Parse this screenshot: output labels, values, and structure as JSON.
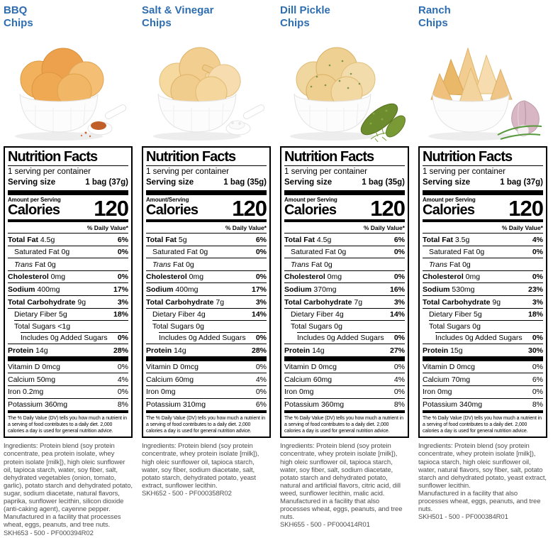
{
  "shared": {
    "title_color": "#2e6eb0",
    "nutrition_facts_title": "Nutrition Facts",
    "servings_per_container": "1 serving per container",
    "serving_size_label": "Serving size",
    "calories_label": "Calories",
    "daily_value_header": "% Daily Value*",
    "footnote": "The % Daily Value (DV) tells you how much a nutrient in a serving of food contributes to a daily diet. 2,000 calories a day is used for general nutrition advice."
  },
  "products": [
    {
      "title": "BBQ\nChips",
      "photo_alt": "bowl of BBQ chips with spice spoon",
      "label": {
        "amount_label": "Amount per Serving",
        "serving_size_value": "1 bag (37g)",
        "calories_value": "120",
        "rows": [
          {
            "name": "Total Fat",
            "amount": "4.5g",
            "pct": "6%",
            "bold": true
          },
          {
            "name": "Saturated Fat",
            "amount": "0g",
            "pct": "0%",
            "indent": 1
          },
          {
            "name": "Trans Fat",
            "amount": "0g",
            "pct": "",
            "indent": 1,
            "italicFirst": true
          },
          {
            "name": "Cholesterol",
            "amount": "0mg",
            "pct": "0%",
            "bold": true
          },
          {
            "name": "Sodium",
            "amount": "400mg",
            "pct": "17%",
            "bold": true
          },
          {
            "name": "Total Carbohydrate",
            "amount": "9g",
            "pct": "3%",
            "bold": true
          },
          {
            "name": "Dietary Fiber",
            "amount": "5g",
            "pct": "18%",
            "indent": 1
          },
          {
            "name": "Total Sugars",
            "amount": "<1g",
            "pct": "",
            "indent": 1,
            "inset": true
          },
          {
            "name": "Includes 0g Added Sugars",
            "amount": "",
            "pct": "0%",
            "indent": 2,
            "inset": true
          },
          {
            "name": "Protein",
            "amount": "14g",
            "pct": "28%",
            "bold": true
          }
        ],
        "vitamins": [
          {
            "name": "Vitamin D",
            "amount": "0mcg",
            "pct": "0%"
          },
          {
            "name": "Calcium",
            "amount": "50mg",
            "pct": "4%"
          },
          {
            "name": "Iron",
            "amount": "0.2mg",
            "pct": "0%"
          },
          {
            "name": "Potassium",
            "amount": "360mg",
            "pct": "8%"
          }
        ]
      },
      "ingredients": "Ingredients: Protein blend (soy protein concentrate, pea protein isolate, whey protein isolate [milk]), high oleic sunflower oil, tapioca starch, water, soy fiber, salt, dehydrated vegetables (onion, tomato, garlic), potato starch and dehydrated potato, sugar, sodium diacetate, natural flavors, paprika, sunflower lecithin, silicon dioxide (anti-caking agent), cayenne pepper.\nManufactured in a facility that processes wheat, eggs, peanuts, and tree nuts.",
      "sku": "SKH653 - 500 - PF000394R02"
    },
    {
      "title": "Salt & Vinegar\nChips",
      "photo_alt": "bowl of salt and vinegar chips with salt spoon",
      "label": {
        "amount_label": "Amount/Serving",
        "serving_size_value": "1 bag (35g)",
        "calories_value": "120",
        "rows": [
          {
            "name": "Total Fat",
            "amount": "5g",
            "pct": "6%",
            "bold": true
          },
          {
            "name": "Saturated Fat",
            "amount": "0g",
            "pct": "0%",
            "indent": 1
          },
          {
            "name": "Trans Fat",
            "amount": "0g",
            "pct": "",
            "indent": 1,
            "italicFirst": true
          },
          {
            "name": "Cholesterol",
            "amount": "0mg",
            "pct": "0%",
            "bold": true
          },
          {
            "name": "Sodium",
            "amount": "400mg",
            "pct": "17%",
            "bold": true
          },
          {
            "name": "Total Carbohydrate",
            "amount": "7g",
            "pct": "3%",
            "bold": true
          },
          {
            "name": "Dietary Fiber",
            "amount": "4g",
            "pct": "14%",
            "indent": 1
          },
          {
            "name": "Total Sugars",
            "amount": "0g",
            "pct": "",
            "indent": 1,
            "inset": true
          },
          {
            "name": "Includes 0g Added Sugars",
            "amount": "",
            "pct": "0%",
            "indent": 2,
            "inset": true
          },
          {
            "name": "Protein",
            "amount": "14g",
            "pct": "28%",
            "bold": true
          }
        ],
        "vitamins": [
          {
            "name": "Vitamin D",
            "amount": "0mcg",
            "pct": "0%"
          },
          {
            "name": "Calcium",
            "amount": "60mg",
            "pct": "4%"
          },
          {
            "name": "Iron",
            "amount": "0mg",
            "pct": "0%"
          },
          {
            "name": "Potassium",
            "amount": "310mg",
            "pct": "6%"
          }
        ]
      },
      "ingredients": "Ingredients: Protein blend (soy protein concentrate, whey protein isolate [milk]), high oleic sunflower oil, tapioca starch, water, soy fiber, sodium diacetate, salt, potato starch, dehydrated potato, yeast extract, sunflower lecithin.",
      "sku": "SKH652 - 500 - PF000358R02"
    },
    {
      "title": "Dill Pickle\nChips",
      "photo_alt": "bowl of dill pickle chips with pickles and dill",
      "label": {
        "amount_label": "Amount per Serving",
        "serving_size_value": "1 bag (35g)",
        "calories_value": "120",
        "rows": [
          {
            "name": "Total Fat",
            "amount": "4.5g",
            "pct": "6%",
            "bold": true
          },
          {
            "name": "Saturated Fat",
            "amount": "0g",
            "pct": "0%",
            "indent": 1
          },
          {
            "name": "Trans Fat",
            "amount": "0g",
            "pct": "",
            "indent": 1,
            "italicFirst": true
          },
          {
            "name": "Cholesterol",
            "amount": "0mg",
            "pct": "0%",
            "bold": true
          },
          {
            "name": "Sodium",
            "amount": "370mg",
            "pct": "16%",
            "bold": true
          },
          {
            "name": "Total Carbohydrate",
            "amount": "7g",
            "pct": "3%",
            "bold": true
          },
          {
            "name": "Dietary Fiber",
            "amount": "4g",
            "pct": "14%",
            "indent": 1
          },
          {
            "name": "Total Sugars",
            "amount": "0g",
            "pct": "",
            "indent": 1,
            "inset": true
          },
          {
            "name": "Includes 0g Added Sugars",
            "amount": "",
            "pct": "0%",
            "indent": 2,
            "inset": true
          },
          {
            "name": "Protein",
            "amount": "14g",
            "pct": "27%",
            "bold": true
          }
        ],
        "vitamins": [
          {
            "name": "Vitamin D",
            "amount": "0mcg",
            "pct": "0%"
          },
          {
            "name": "Calcium",
            "amount": "60mg",
            "pct": "4%"
          },
          {
            "name": "Iron",
            "amount": "0mg",
            "pct": "0%"
          },
          {
            "name": "Potassium",
            "amount": "360mg",
            "pct": "8%"
          }
        ]
      },
      "ingredients": "Ingredients: Protein blend (soy protein concentrate, whey protein isolate [milk]), high oleic sunflower oil, tapioca starch, water, soy fiber, salt, sodium diacetate, potato starch and dehydrated potato, natural and artificial flavors, citric acid, dill weed, sunflower lecithin, malic acid.\nManufactured in a facility that also processes wheat, eggs, peanuts, and tree nuts.",
      "sku": "SKH655 - 500 - PF000414R01"
    },
    {
      "title": "Ranch\nChips",
      "photo_alt": "bowl of ranch chips with garlic and chives",
      "label": {
        "amount_label": "Amount per Serving",
        "serving_size_value": "1 bag (37g)",
        "calories_value": "120",
        "rows": [
          {
            "name": "Total Fat",
            "amount": "3.5g",
            "pct": "4%",
            "bold": true
          },
          {
            "name": "Saturated Fat",
            "amount": "0g",
            "pct": "0%",
            "indent": 1
          },
          {
            "name": "Trans Fat",
            "amount": "0g",
            "pct": "",
            "indent": 1,
            "italicFirst": true
          },
          {
            "name": "Cholesterol",
            "amount": "0mg",
            "pct": "0%",
            "bold": true
          },
          {
            "name": "Sodium",
            "amount": "530mg",
            "pct": "23%",
            "bold": true
          },
          {
            "name": "Total Carbohydrate",
            "amount": "9g",
            "pct": "3%",
            "bold": true
          },
          {
            "name": "Dietary Fiber",
            "amount": "5g",
            "pct": "18%",
            "indent": 1
          },
          {
            "name": "Total Sugars",
            "amount": "0g",
            "pct": "",
            "indent": 1,
            "inset": true
          },
          {
            "name": "Includes 0g Added Sugars",
            "amount": "",
            "pct": "0%",
            "indent": 2,
            "inset": true
          },
          {
            "name": "Protein",
            "amount": "15g",
            "pct": "30%",
            "bold": true
          }
        ],
        "vitamins": [
          {
            "name": "Vitamin D",
            "amount": "0mcg",
            "pct": "0%"
          },
          {
            "name": "Calcium",
            "amount": "70mg",
            "pct": "6%"
          },
          {
            "name": "Iron",
            "amount": "0mg",
            "pct": "0%"
          },
          {
            "name": "Potassium",
            "amount": "340mg",
            "pct": "8%"
          }
        ]
      },
      "ingredients": "Ingredients: Protein blend (soy protein concentrate, whey protein isolate [milk]), tapioca starch, high oleic sunflower oil, water, natural flavors, soy fiber, salt, potato starch and dehydrated potato, yeast extract, sunflower lecithin.\nManufactured in a facility that also processes wheat, eggs, peanuts, and tree nuts.",
      "sku": "SKH501 - 500 - PF000384R01"
    }
  ]
}
